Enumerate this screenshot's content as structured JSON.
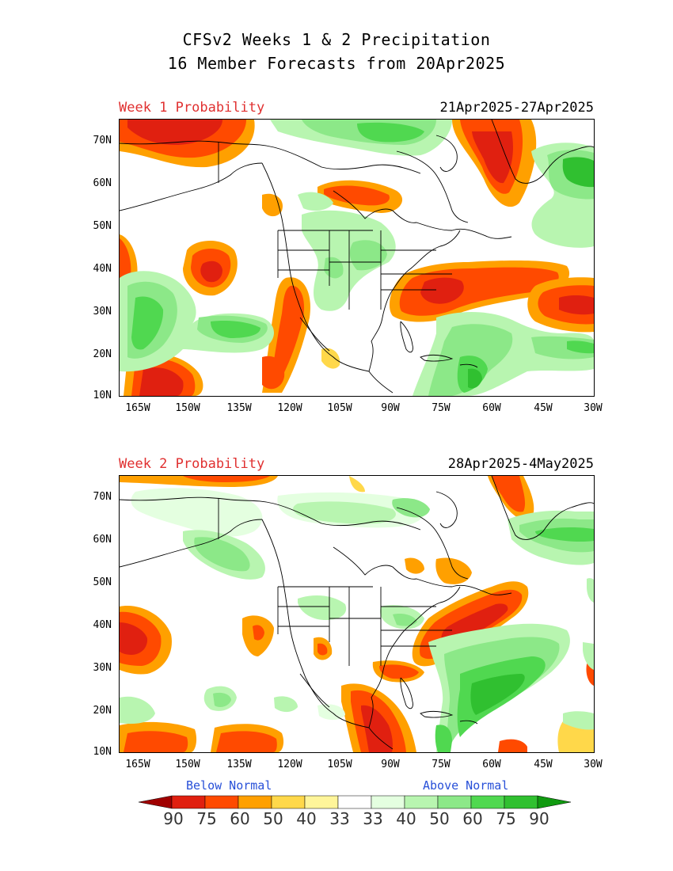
{
  "title": {
    "line1": "CFSv2 Weeks 1 & 2 Precipitation",
    "line2": "16 Member Forecasts from 20Apr2025"
  },
  "panels": [
    {
      "label": "Week 1 Probability",
      "dates": "21Apr2025-27Apr2025"
    },
    {
      "label": "Week 2 Probability",
      "dates": "28Apr2025-4May2025"
    }
  ],
  "axes": {
    "lat_ticks": [
      "70N",
      "60N",
      "50N",
      "40N",
      "30N",
      "20N",
      "10N"
    ],
    "lon_ticks": [
      "165W",
      "150W",
      "135W",
      "120W",
      "105W",
      "90W",
      "75W",
      "60W",
      "45W",
      "30W"
    ]
  },
  "legend": {
    "below_label": "Below Normal",
    "above_label": "Above Normal",
    "labels": [
      "90",
      "75",
      "60",
      "50",
      "40",
      "33",
      "33",
      "40",
      "50",
      "60",
      "75",
      "90"
    ],
    "colors": [
      "#a00000",
      "#e02010",
      "#ff4a00",
      "#ffa000",
      "#ffd84a",
      "#fff59a",
      "#ffffff",
      "#e4ffe0",
      "#b8f5b0",
      "#8ce888",
      "#50d850",
      "#30c030",
      "#109a10"
    ]
  }
}
